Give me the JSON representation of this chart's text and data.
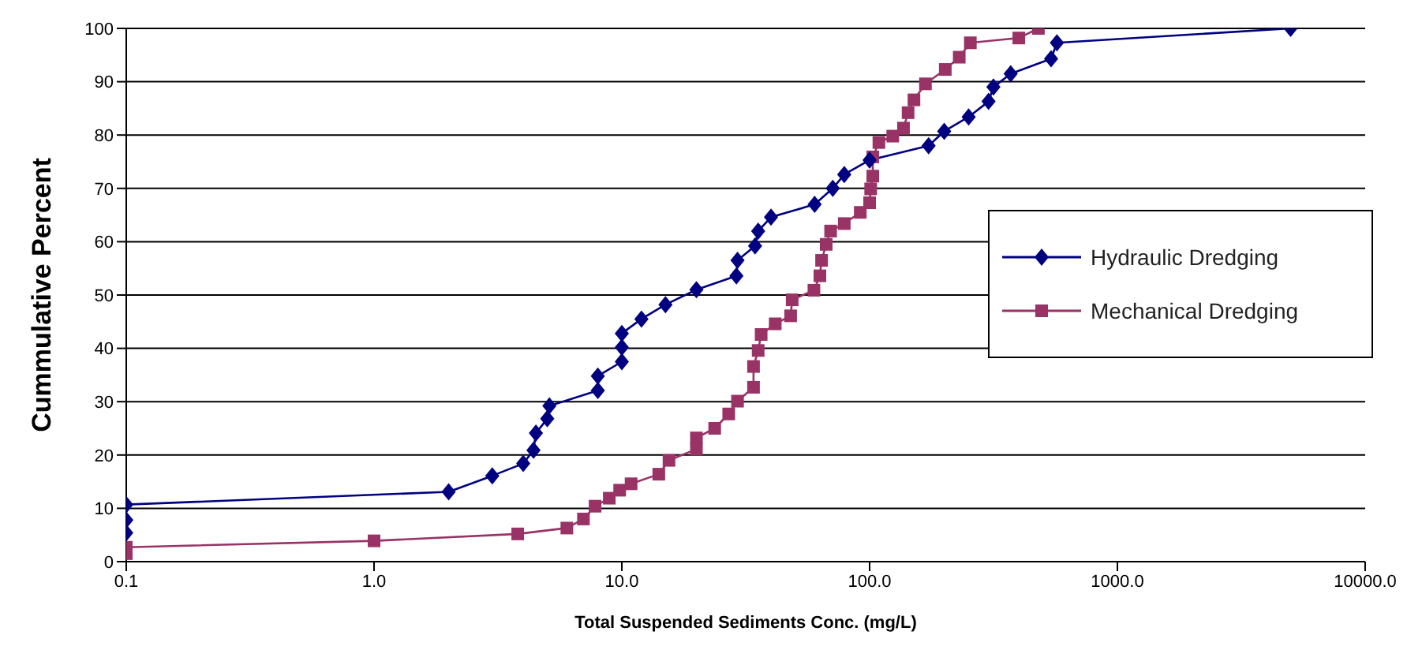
{
  "chart_data": {
    "type": "line",
    "xlabel": "Total Suspended Sediments Conc. (mg/L)",
    "ylabel": "Cummulative Percent",
    "log": "x",
    "grid": "y",
    "legend": "right",
    "line_style": "solid",
    "xlim": [
      0.1,
      10000
    ],
    "xticks": [
      0.1,
      {
        "value": 1,
        "label": "1.0"
      },
      {
        "value": 10,
        "label": "10.0"
      },
      {
        "value": 100,
        "label": "100.0"
      },
      {
        "value": 1000,
        "label": "1000.0"
      },
      {
        "value": 10000,
        "label": "10000.0"
      }
    ],
    "ylim": [
      0,
      100
    ],
    "yticks": [
      0,
      10,
      20,
      30,
      40,
      50,
      60,
      70,
      80,
      90,
      100
    ],
    "series": [
      {
        "name": "Hydraulic Dredging",
        "color": "#000080",
        "marker": "diamond",
        "x": [
          0.1,
          0.1,
          0.1,
          2.0,
          3.0,
          4.0,
          4.4,
          4.5,
          5.0,
          5.1,
          8.0,
          8.0,
          10,
          10,
          10,
          12,
          15,
          20,
          29,
          29.3,
          34.5,
          35.5,
          40,
          60,
          71,
          79,
          100,
          173,
          200,
          251,
          302,
          316,
          371,
          540,
          570,
          5000
        ],
        "values": [
          5.4,
          7.8,
          10.7,
          13.1,
          16.1,
          18.4,
          20.9,
          24.1,
          26.8,
          29.2,
          32.1,
          34.8,
          37.5,
          40.2,
          42.8,
          45.5,
          48.2,
          51,
          53.6,
          56.5,
          59.2,
          62,
          64.6,
          67,
          70,
          72.6,
          75.3,
          78,
          80.7,
          83.4,
          86.3,
          89,
          91.5,
          94.3,
          97.3,
          100
        ]
      },
      {
        "name": "Mechanical Dredging",
        "color": "#993366",
        "marker": "square",
        "x": [
          0.1,
          0.1,
          1.0,
          3.8,
          6.0,
          7.0,
          7.8,
          8.9,
          9.8,
          10.9,
          14.1,
          15.5,
          20,
          20,
          23.7,
          27,
          29.3,
          34,
          34,
          35.5,
          36.5,
          41.6,
          48,
          48.7,
          59.6,
          63,
          64,
          66.8,
          69.6,
          79,
          91.7,
          100,
          101,
          103,
          103,
          109,
          124,
          137,
          143,
          151,
          168,
          202,
          230,
          255,
          400,
          480
        ],
        "values": [
          1.5,
          2.7,
          3.9,
          5.2,
          6.3,
          8.0,
          10.4,
          11.9,
          13.4,
          14.6,
          16.4,
          19,
          21.1,
          23.2,
          25,
          27.7,
          30.1,
          32.7,
          36.6,
          39.6,
          42.6,
          44.6,
          46.1,
          49.1,
          50.9,
          53.6,
          56.5,
          59.5,
          62,
          63.4,
          65.5,
          67.3,
          69.9,
          72.3,
          75.9,
          78.6,
          79.8,
          81.3,
          84.2,
          86.6,
          89.6,
          92.3,
          94.6,
          97.3,
          98.2,
          100
        ]
      }
    ]
  }
}
